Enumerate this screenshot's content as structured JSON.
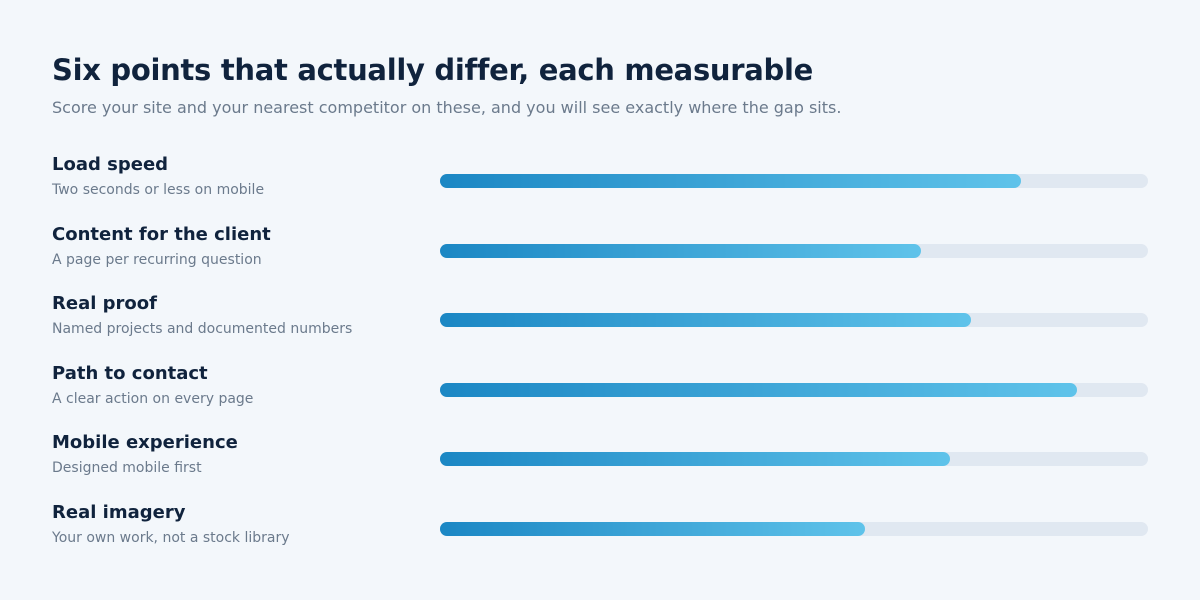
{
  "header": {
    "title": "Six points that actually differ, each measurable",
    "subtitle": "Score your site and your nearest competitor on these, and you will see exactly where the gap sits."
  },
  "rows": [
    {
      "label": "Load speed",
      "description": "Two seconds or less on mobile",
      "value": 0.82
    },
    {
      "label": "Content for the client",
      "description": "A page per recurring question",
      "value": 0.68
    },
    {
      "label": "Real proof",
      "description": "Named projects and documented numbers",
      "value": 0.75
    },
    {
      "label": "Path to contact",
      "description": "A clear action on every page",
      "value": 0.9
    },
    {
      "label": "Mobile experience",
      "description": "Designed mobile first",
      "value": 0.72
    },
    {
      "label": "Real imagery",
      "description": "Your own work, not a stock library",
      "value": 0.6
    }
  ],
  "colors": {
    "background": "#f3f7fb",
    "title": "#10233d",
    "muted_text": "#6b7a8c",
    "track": "#e0e8f1",
    "fill_start": "#1b87c4",
    "fill_end": "#5fc3ea"
  }
}
